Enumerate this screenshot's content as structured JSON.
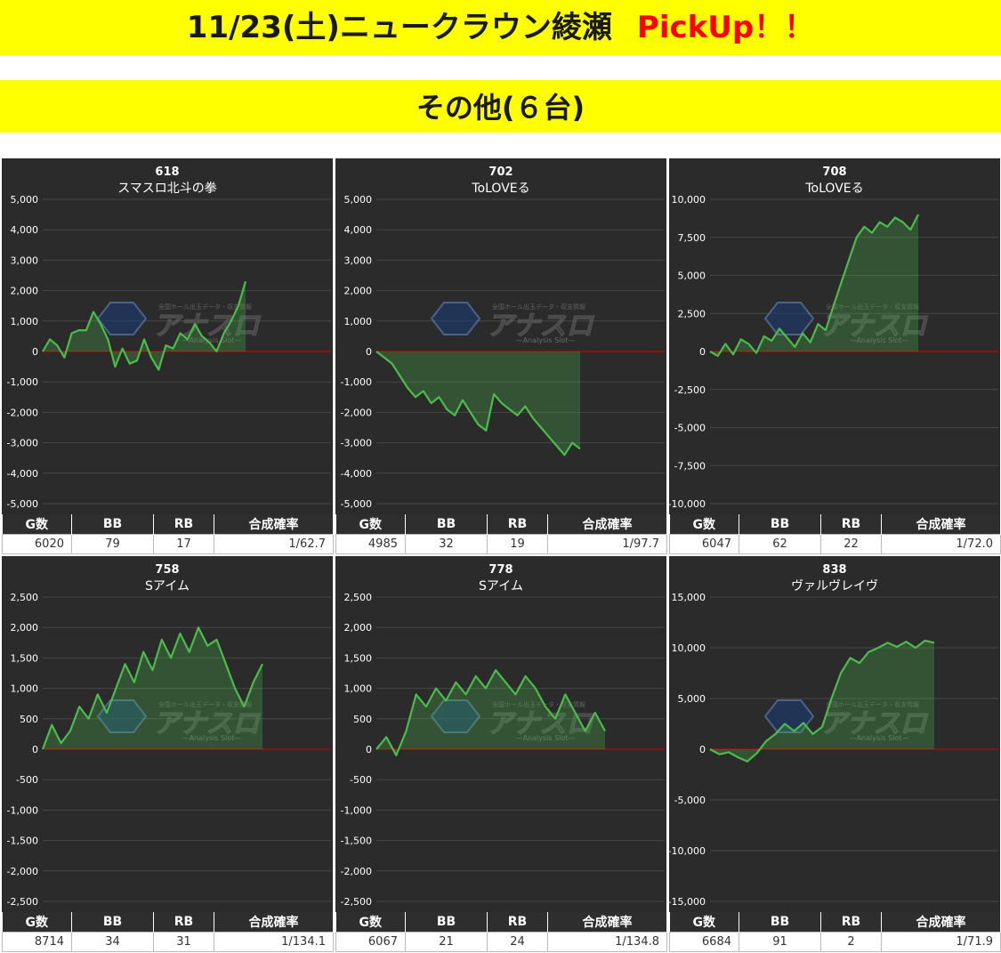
{
  "header": {
    "title": "11/23(土)ニュークラウン綾瀬",
    "highlight": "PickUp！！",
    "subtitle": "その他(６台)"
  },
  "colors": {
    "banner_bg": "#ffff00",
    "highlight": "#ff0000",
    "panel_bg": "#2b2b2b",
    "line": "#4cbb4c",
    "zero_line": "#cc0000"
  },
  "table_headers": {
    "games": "G数",
    "bb": "BB",
    "rb": "RB",
    "prob": "合成確率"
  },
  "watermark": {
    "logo_text": "アナスロ",
    "tag": "—Analysis Slot—",
    "caption": "全国ホール出玉データ・収支情報"
  },
  "machines": [
    {
      "number": "618",
      "name": "スマスロ北斗の拳",
      "stats": {
        "games": "6020",
        "bb": "79",
        "rb": "17",
        "prob": "1/62.7"
      },
      "chart_data": {
        "type": "area",
        "ylim": [
          -5000,
          5000
        ],
        "y_ticks": [
          "5,000",
          "4,000",
          "3,000",
          "2,000",
          "1,000",
          "0",
          "-1,000",
          "-2,000",
          "-3,000",
          "-4,000",
          "-5,000"
        ],
        "y": [
          0,
          400,
          200,
          -200,
          600,
          700,
          700,
          1300,
          900,
          400,
          -500,
          100,
          -400,
          -300,
          400,
          -200,
          -600,
          200,
          100,
          600,
          400,
          900,
          500,
          300,
          0,
          600,
          1000,
          1500,
          2300
        ]
      }
    },
    {
      "number": "702",
      "name": "ToLOVEる",
      "stats": {
        "games": "4985",
        "bb": "32",
        "rb": "19",
        "prob": "1/97.7"
      },
      "chart_data": {
        "type": "area",
        "ylim": [
          -5000,
          5000
        ],
        "y_ticks": [
          "5,000",
          "4,000",
          "3,000",
          "2,000",
          "1,000",
          "0",
          "-1,000",
          "-2,000",
          "-3,000",
          "-4,000",
          "-5,000"
        ],
        "y": [
          0,
          -200,
          -400,
          -800,
          -1200,
          -1500,
          -1300,
          -1700,
          -1500,
          -1900,
          -2100,
          -1600,
          -2000,
          -2400,
          -2600,
          -1400,
          -1700,
          -1900,
          -2100,
          -1800,
          -2200,
          -2500,
          -2800,
          -3100,
          -3400,
          -3000,
          -3200
        ]
      }
    },
    {
      "number": "708",
      "name": "ToLOVEる",
      "stats": {
        "games": "6047",
        "bb": "62",
        "rb": "22",
        "prob": "1/72.0"
      },
      "chart_data": {
        "type": "area",
        "ylim": [
          -10000,
          10000
        ],
        "y_ticks": [
          "10,000",
          "7,500",
          "5,000",
          "2,500",
          "0",
          "-2,500",
          "-5,000",
          "-7,500",
          "-10,000"
        ],
        "y": [
          0,
          -300,
          500,
          -200,
          800,
          500,
          -100,
          1000,
          700,
          1500,
          900,
          300,
          1200,
          600,
          1800,
          1400,
          3000,
          4500,
          6000,
          7500,
          8200,
          7800,
          8500,
          8200,
          8800,
          8500,
          8000,
          9000
        ]
      }
    },
    {
      "number": "758",
      "name": "Sアイム",
      "stats": {
        "games": "8714",
        "bb": "34",
        "rb": "31",
        "prob": "1/134.1"
      },
      "chart_data": {
        "type": "area",
        "ylim": [
          -2500,
          2500
        ],
        "y_ticks": [
          "2,500",
          "2,000",
          "1,500",
          "1,000",
          "500",
          "0",
          "-500",
          "-1,000",
          "-1,500",
          "-2,000",
          "-2,500"
        ],
        "y": [
          0,
          400,
          100,
          300,
          700,
          500,
          900,
          600,
          1000,
          1400,
          1100,
          1600,
          1300,
          1800,
          1500,
          1900,
          1600,
          2000,
          1700,
          1800,
          1400,
          1000,
          700,
          1100,
          1400
        ]
      }
    },
    {
      "number": "778",
      "name": "Sアイム",
      "stats": {
        "games": "6067",
        "bb": "21",
        "rb": "24",
        "prob": "1/134.8"
      },
      "chart_data": {
        "type": "area",
        "ylim": [
          -2500,
          2500
        ],
        "y_ticks": [
          "2,500",
          "2,000",
          "1,500",
          "1,000",
          "500",
          "0",
          "-500",
          "-1,000",
          "-1,500",
          "-2,000",
          "-2,500"
        ],
        "y": [
          0,
          200,
          -100,
          300,
          900,
          700,
          1000,
          800,
          1100,
          900,
          1200,
          1000,
          1300,
          1100,
          900,
          1200,
          1000,
          700,
          500,
          900,
          600,
          300,
          600,
          300
        ]
      }
    },
    {
      "number": "838",
      "name": "ヴァルヴレイヴ",
      "stats": {
        "games": "6684",
        "bb": "91",
        "rb": "2",
        "prob": "1/71.9"
      },
      "chart_data": {
        "type": "area",
        "ylim": [
          -15000,
          15000
        ],
        "y_ticks": [
          "15,000",
          "10,000",
          "5,000",
          "0",
          "-5,000",
          "-10,000",
          "-15,000"
        ],
        "y": [
          0,
          -500,
          -300,
          -800,
          -1200,
          -400,
          800,
          1500,
          2500,
          1800,
          2600,
          1500,
          2200,
          5000,
          7500,
          9000,
          8500,
          9600,
          10000,
          10500,
          10100,
          10600,
          10000,
          10700,
          10500
        ]
      }
    }
  ]
}
